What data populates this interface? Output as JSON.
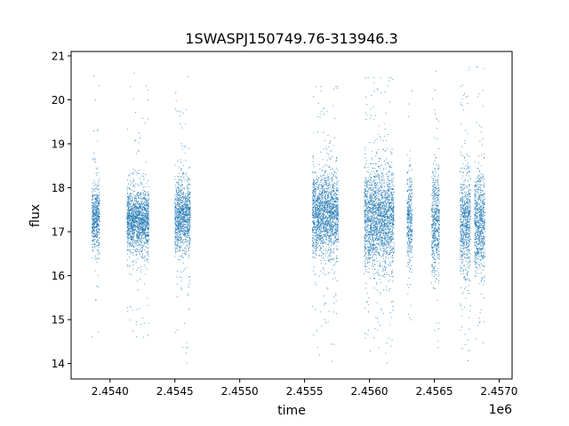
{
  "chart_data": {
    "type": "scatter",
    "title": "1SWASPJ150749.76-313946.3",
    "xlabel": "time",
    "ylabel": "flux",
    "x_offset_label": "1e6",
    "x_scale": 1000000,
    "xlim": [
      2453700,
      2457100
    ],
    "ylim": [
      13.65,
      21.1
    ],
    "xticks": [
      2454000,
      2454500,
      2455000,
      2455500,
      2456000,
      2456500,
      2457000
    ],
    "xtick_labels": [
      "2.4540",
      "2.4545",
      "2.4550",
      "2.4555",
      "2.4560",
      "2.4565",
      "2.4570"
    ],
    "yticks": [
      14,
      15,
      16,
      17,
      18,
      19,
      20,
      21
    ],
    "ytick_labels": [
      "14",
      "15",
      "16",
      "17",
      "18",
      "19",
      "20",
      "21"
    ],
    "marker_color": "#1f77b4",
    "grid": false,
    "legend": "none",
    "observing_seasons": [
      {
        "x_start": 2453860,
        "x_end": 2453920,
        "y_center": 17.3,
        "y_spread": 0.35,
        "x_min_outlier": 2453850,
        "y_min": 14.1,
        "y_max": 20.75
      },
      {
        "x_start": 2454130,
        "x_end": 2454300,
        "y_center": 17.25,
        "y_spread": 0.35,
        "y_min": 14.6,
        "y_max": 20.7
      },
      {
        "x_start": 2454500,
        "x_end": 2454620,
        "y_center": 17.35,
        "y_spread": 0.4,
        "y_min": 13.95,
        "y_max": 20.6
      },
      {
        "x_start": 2455560,
        "x_end": 2455760,
        "y_center": 17.4,
        "y_spread": 0.45,
        "y_min": 14.05,
        "y_max": 20.3
      },
      {
        "x_start": 2455960,
        "x_end": 2456190,
        "y_center": 17.3,
        "y_spread": 0.55,
        "y_min": 13.95,
        "y_max": 20.5
      },
      {
        "x_start": 2456290,
        "x_end": 2456330,
        "y_center": 17.3,
        "y_spread": 0.5,
        "y_min": 15.0,
        "y_max": 20.2
      },
      {
        "x_start": 2456480,
        "x_end": 2456540,
        "y_center": 17.2,
        "y_spread": 0.6,
        "y_min": 13.95,
        "y_max": 20.65
      },
      {
        "x_start": 2456700,
        "x_end": 2456780,
        "y_center": 17.2,
        "y_spread": 0.55,
        "y_min": 14.0,
        "y_max": 20.75
      },
      {
        "x_start": 2456810,
        "x_end": 2456890,
        "y_center": 17.2,
        "y_spread": 0.55,
        "y_min": 14.0,
        "y_max": 20.75
      }
    ]
  }
}
